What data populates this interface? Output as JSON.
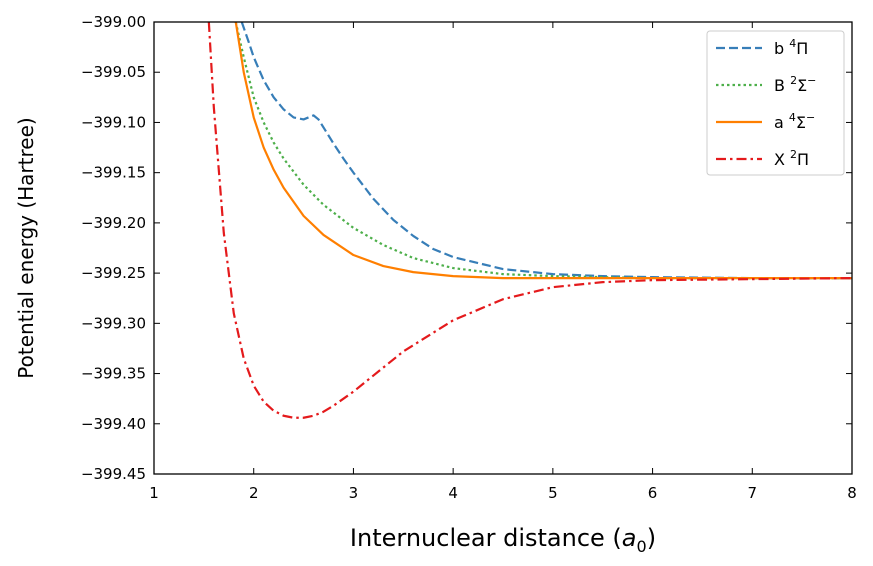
{
  "chart_data": {
    "type": "line",
    "xlabel": "Internuclear distance (a0)",
    "xlabel_parts": {
      "prefix": "Internuclear distance (",
      "symbol": "a",
      "subscript": "0",
      "suffix": ")"
    },
    "ylabel": "Potential energy (Hartree)",
    "xlim": [
      1,
      8
    ],
    "ylim": [
      -399.45,
      -399.0
    ],
    "xticks": [
      "1",
      "2",
      "3",
      "4",
      "5",
      "6",
      "7",
      "8"
    ],
    "yticks": [
      "−399.00",
      "−399.05",
      "−399.10",
      "−399.15",
      "−399.20",
      "−399.25",
      "−399.30",
      "−399.35",
      "−399.40",
      "−399.45"
    ],
    "grid": false,
    "legend_position": "top-right",
    "series": [
      {
        "name": "b ⁴Π",
        "label": {
          "letter": "b",
          "mult": "4",
          "term": "Π",
          "sign": ""
        },
        "color": "#377eb8",
        "dash": "dashed",
        "x": [
          1.88,
          1.95,
          2.0,
          2.1,
          2.2,
          2.3,
          2.4,
          2.5,
          2.55,
          2.6,
          2.65,
          2.7,
          2.8,
          2.9,
          3.0,
          3.2,
          3.4,
          3.6,
          3.8,
          4.0,
          4.5,
          5.0,
          5.5,
          6.0,
          7.0,
          8.0
        ],
        "y": [
          -399.0,
          -399.02,
          -399.035,
          -399.058,
          -399.075,
          -399.087,
          -399.095,
          -399.097,
          -399.095,
          -399.093,
          -399.097,
          -399.105,
          -399.121,
          -399.136,
          -399.15,
          -399.176,
          -399.197,
          -399.213,
          -399.226,
          -399.234,
          -399.246,
          -399.251,
          -399.253,
          -399.254,
          -399.255,
          -399.255
        ]
      },
      {
        "name": "B ²Σ⁻",
        "label": {
          "letter": "B",
          "mult": "2",
          "term": "Σ",
          "sign": "−"
        },
        "color": "#4daf4a",
        "dash": "dotted",
        "x": [
          1.82,
          1.9,
          2.0,
          2.1,
          2.2,
          2.3,
          2.5,
          2.7,
          3.0,
          3.3,
          3.6,
          4.0,
          4.5,
          5.0,
          5.5,
          6.0,
          7.0,
          8.0
        ],
        "y": [
          -399.0,
          -399.035,
          -399.075,
          -399.1,
          -399.12,
          -399.136,
          -399.162,
          -399.182,
          -399.205,
          -399.222,
          -399.235,
          -399.245,
          -399.251,
          -399.253,
          -399.254,
          -399.255,
          -399.255,
          -399.255
        ]
      },
      {
        "name": "a ⁴Σ⁻",
        "label": {
          "letter": "a",
          "mult": "4",
          "term": "Σ",
          "sign": "−"
        },
        "color": "#ff7f00",
        "dash": "solid",
        "x": [
          1.82,
          1.9,
          2.0,
          2.1,
          2.2,
          2.3,
          2.5,
          2.7,
          3.0,
          3.3,
          3.6,
          4.0,
          4.5,
          5.0,
          6.0,
          7.0,
          8.0
        ],
        "y": [
          -399.0,
          -399.05,
          -399.095,
          -399.125,
          -399.147,
          -399.165,
          -399.193,
          -399.212,
          -399.232,
          -399.243,
          -399.249,
          -399.253,
          -399.255,
          -399.255,
          -399.255,
          -399.255,
          -399.255
        ]
      },
      {
        "name": "X ²Π",
        "label": {
          "letter": "X",
          "mult": "2",
          "term": "Π",
          "sign": ""
        },
        "color": "#e41a1c",
        "dash": "dashdot",
        "x": [
          1.55,
          1.6,
          1.7,
          1.8,
          1.9,
          2.0,
          2.1,
          2.2,
          2.3,
          2.4,
          2.5,
          2.6,
          2.7,
          2.8,
          3.0,
          3.2,
          3.5,
          4.0,
          4.5,
          5.0,
          5.5,
          6.0,
          7.0,
          8.0
        ],
        "y": [
          -399.0,
          -399.085,
          -399.21,
          -399.29,
          -399.335,
          -399.362,
          -399.378,
          -399.387,
          -399.392,
          -399.394,
          -399.394,
          -399.392,
          -399.388,
          -399.382,
          -399.368,
          -399.352,
          -399.328,
          -399.297,
          -399.276,
          -399.264,
          -399.259,
          -399.257,
          -399.256,
          -399.255
        ]
      }
    ]
  }
}
